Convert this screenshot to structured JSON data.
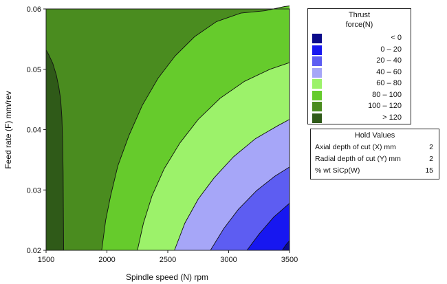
{
  "chart_data": {
    "type": "contour",
    "xlabel": "Spindle speed (N) rpm",
    "ylabel": "Feed rate (F) mm/rev",
    "xlim": [
      1500,
      3500
    ],
    "ylim": [
      0.02,
      0.06
    ],
    "x_ticks": [
      "1500",
      "2000",
      "2500",
      "3000",
      "3500"
    ],
    "y_ticks": [
      "0.02",
      "0.03",
      "0.04",
      "0.05",
      "0.06"
    ],
    "contours": [
      {
        "level": 120,
        "points": [
          [
            1500,
            0.0532
          ],
          [
            1520,
            0.0525
          ],
          [
            1555,
            0.051
          ],
          [
            1585,
            0.049
          ],
          [
            1605,
            0.047
          ],
          [
            1620,
            0.045
          ],
          [
            1630,
            0.042
          ],
          [
            1636,
            0.038
          ],
          [
            1640,
            0.033
          ],
          [
            1642,
            0.027
          ],
          [
            1644,
            0.02
          ]
        ]
      },
      {
        "level": 100,
        "points": [
          [
            1957,
            0.02
          ],
          [
            1990,
            0.025
          ],
          [
            2030,
            0.029
          ],
          [
            2090,
            0.034
          ],
          [
            2180,
            0.039
          ],
          [
            2290,
            0.044
          ],
          [
            2420,
            0.0485
          ],
          [
            2560,
            0.0522
          ],
          [
            2720,
            0.0554
          ],
          [
            2900,
            0.0579
          ],
          [
            3100,
            0.0593
          ],
          [
            3300,
            0.0597
          ],
          [
            3460,
            0.0604
          ],
          [
            3500,
            0.0605
          ]
        ]
      },
      {
        "level": 80,
        "points": [
          [
            2250,
            0.02
          ],
          [
            2300,
            0.0245
          ],
          [
            2370,
            0.029
          ],
          [
            2470,
            0.0335
          ],
          [
            2600,
            0.0378
          ],
          [
            2750,
            0.0417
          ],
          [
            2930,
            0.0452
          ],
          [
            3130,
            0.048
          ],
          [
            3340,
            0.05
          ],
          [
            3500,
            0.0511
          ]
        ]
      },
      {
        "level": 60,
        "points": [
          [
            2555,
            0.02
          ],
          [
            2640,
            0.0245
          ],
          [
            2750,
            0.0285
          ],
          [
            2880,
            0.032
          ],
          [
            3040,
            0.0355
          ],
          [
            3220,
            0.0385
          ],
          [
            3400,
            0.0406
          ],
          [
            3500,
            0.0417
          ]
        ]
      },
      {
        "level": 40,
        "points": [
          [
            2850,
            0.02
          ],
          [
            2960,
            0.0236
          ],
          [
            3080,
            0.0268
          ],
          [
            3230,
            0.0299
          ],
          [
            3380,
            0.0323
          ],
          [
            3500,
            0.0338
          ]
        ]
      },
      {
        "level": 20,
        "points": [
          [
            3150,
            0.02
          ],
          [
            3250,
            0.0227
          ],
          [
            3370,
            0.0255
          ],
          [
            3500,
            0.0278
          ]
        ]
      },
      {
        "level": 0,
        "points": [
          [
            3440,
            0.02
          ],
          [
            3470,
            0.0209
          ],
          [
            3500,
            0.0216
          ]
        ]
      }
    ],
    "legend": {
      "title": "Thrust force(N)",
      "entries": [
        {
          "label": "< 0",
          "color": "#0b0b8a"
        },
        {
          "label": "0 – 20",
          "color": "#1717f0"
        },
        {
          "label": "20 – 40",
          "color": "#5d5df2"
        },
        {
          "label": "40 – 60",
          "color": "#a6a6f8"
        },
        {
          "label": "60 – 80",
          "color": "#9cf26a"
        },
        {
          "label": "80 – 100",
          "color": "#66cb2c"
        },
        {
          "label": "100 – 120",
          "color": "#4a8c1f"
        },
        {
          "label": "> 120",
          "color": "#2f5a18"
        }
      ]
    },
    "hold_values": {
      "title": "Hold Values",
      "rows": [
        {
          "label": "Axial depth of cut (X) mm",
          "value": "2"
        },
        {
          "label": "Radial depth of cut (Y) mm",
          "value": "2"
        },
        {
          "label": "% wt SiCp(W)",
          "value": "15"
        }
      ]
    }
  }
}
